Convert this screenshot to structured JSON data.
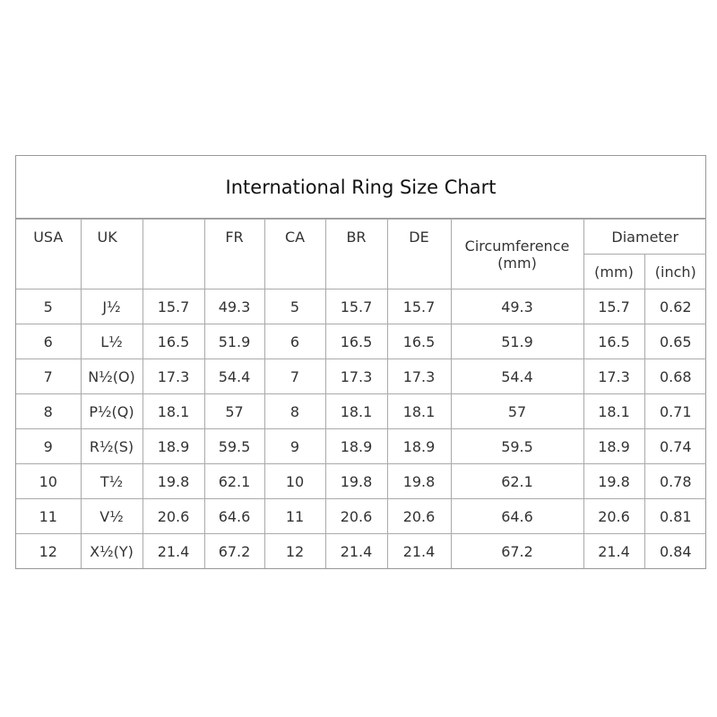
{
  "title": "International Ring Size Chart",
  "headers": {
    "usa": "USA",
    "uk": "UK",
    "blank": "",
    "fr": "FR",
    "ca": "CA",
    "br": "BR",
    "de": "DE",
    "circumference": "Circumference",
    "circumference_unit": "(mm)",
    "diameter": "Diameter",
    "diameter_mm": "(mm)",
    "diameter_inch": "(inch)"
  },
  "rows": [
    [
      "5",
      "J½",
      "15.7",
      "49.3",
      "5",
      "15.7",
      "15.7",
      "49.3",
      "15.7",
      "0.62"
    ],
    [
      "6",
      "L½",
      "16.5",
      "51.9",
      "6",
      "16.5",
      "16.5",
      "51.9",
      "16.5",
      "0.65"
    ],
    [
      "7",
      "N½(O)",
      "17.3",
      "54.4",
      "7",
      "17.3",
      "17.3",
      "54.4",
      "17.3",
      "0.68"
    ],
    [
      "8",
      "P½(Q)",
      "18.1",
      "57",
      "8",
      "18.1",
      "18.1",
      "57",
      "18.1",
      "0.71"
    ],
    [
      "9",
      "R½(S)",
      "18.9",
      "59.5",
      "9",
      "18.9",
      "18.9",
      "59.5",
      "18.9",
      "0.74"
    ],
    [
      "10",
      "T½",
      "19.8",
      "62.1",
      "10",
      "19.8",
      "19.8",
      "62.1",
      "19.8",
      "0.78"
    ],
    [
      "11",
      "V½",
      "20.6",
      "64.6",
      "11",
      "20.6",
      "20.6",
      "64.6",
      "20.6",
      "0.81"
    ],
    [
      "12",
      "X½(Y)",
      "21.4",
      "67.2",
      "12",
      "21.4",
      "21.4",
      "67.2",
      "21.4",
      "0.84"
    ]
  ]
}
